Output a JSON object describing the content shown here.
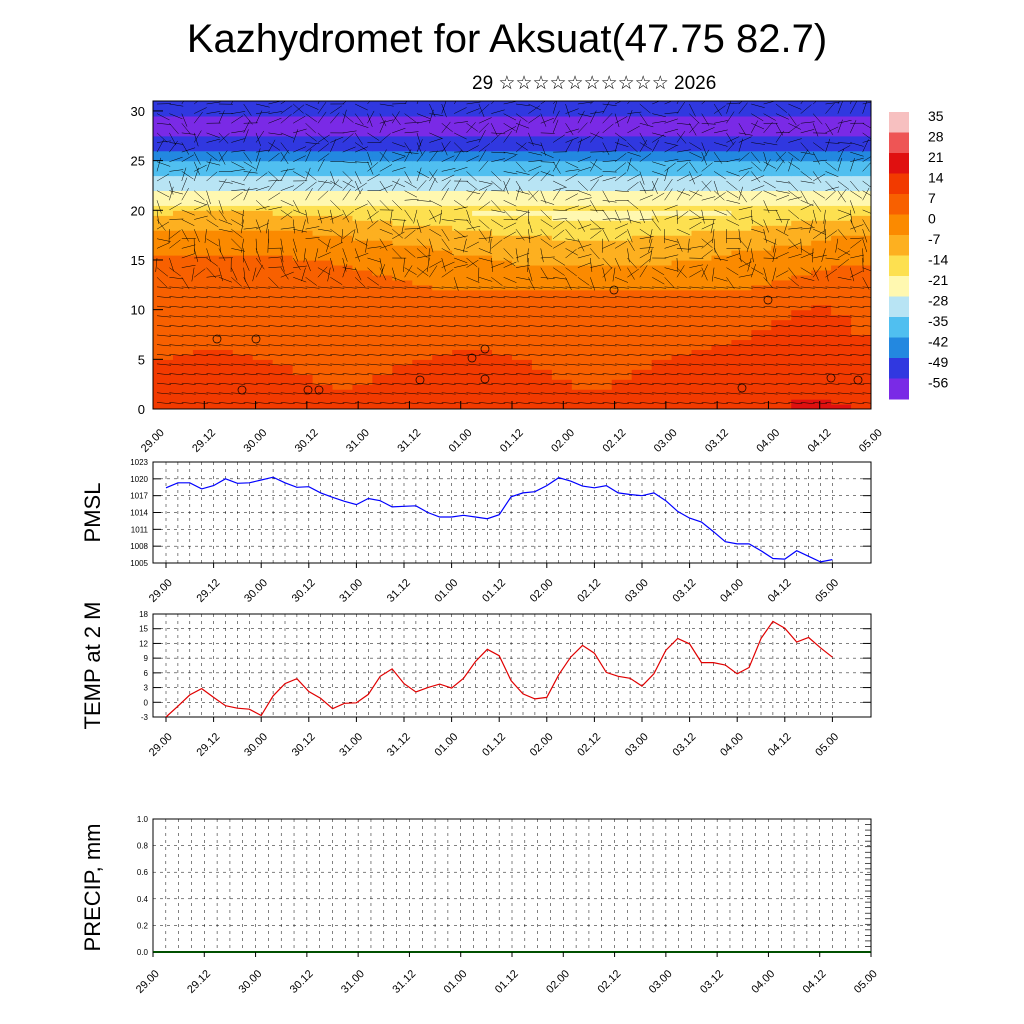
{
  "title": "Kazhydromet for Aksuat(47.75 82.7)",
  "subtitle": "29 ☆☆☆☆☆☆☆☆☆☆ 2026",
  "x_tick_labels": [
    "29.00",
    "29.12",
    "30.00",
    "30.12",
    "31.00",
    "31.12",
    "01.00",
    "01.12",
    "02.00",
    "02.12",
    "03.00",
    "03.12",
    "04.00",
    "04.12",
    "05.00"
  ],
  "chart_data": [
    {
      "type": "heatmap",
      "title": "",
      "ylabel": "",
      "y_ticks": [
        0,
        5,
        10,
        15,
        20,
        25,
        30
      ],
      "ylim": [
        0,
        31
      ],
      "colorbar_labels": [
        "35",
        "28",
        "21",
        "14",
        "7",
        "0",
        "-7",
        "-14",
        "-21",
        "-28",
        "-35",
        "-42",
        "-49",
        "-56"
      ],
      "colorbar_colors": [
        "#f7c0c0",
        "#ee5555",
        "#e01010",
        "#f23a00",
        "#f86000",
        "#fb8a00",
        "#fdb020",
        "#fde050",
        "#fff8b0",
        "#b8e4f4",
        "#50bff0",
        "#2388e0",
        "#3038e0",
        "#7a2ae6"
      ],
      "levels": [
        0,
        2,
        4,
        6,
        8,
        10,
        12,
        14,
        16,
        18,
        20,
        22,
        24,
        26,
        28,
        30
      ],
      "temperature_profile": [
        14,
        12,
        11,
        9,
        8,
        6,
        5,
        2,
        -2,
        -8,
        -16,
        -24,
        -33,
        -45,
        -54,
        -52,
        -48
      ]
    },
    {
      "type": "line",
      "ylabel": "PMSL",
      "ylim": [
        1005,
        1023
      ],
      "y_ticks": [
        "1005",
        "1008",
        "1011",
        "1014",
        "1017",
        "1020",
        "1023"
      ],
      "color": "#0000ff",
      "values": [
        1018.4,
        1019.3,
        1019.3,
        1018.2,
        1018.8,
        1020.0,
        1019.2,
        1019.3,
        1019.8,
        1020.3,
        1019.3,
        1018.5,
        1018.6,
        1017.5,
        1016.7,
        1016.0,
        1015.4,
        1016.5,
        1016.1,
        1015.0,
        1015.1,
        1015.2,
        1014.0,
        1013.2,
        1013.2,
        1013.5,
        1013.2,
        1012.9,
        1013.6,
        1016.8,
        1017.5,
        1017.7,
        1018.8,
        1020.2,
        1019.6,
        1018.7,
        1018.4,
        1018.8,
        1017.5,
        1017.2,
        1017.0,
        1017.5,
        1016.1,
        1014.2,
        1013.0,
        1012.3,
        1010.6,
        1008.8,
        1008.4,
        1008.4,
        1007.2,
        1005.8,
        1005.7,
        1007.2,
        1006.2,
        1005.2,
        1005.6
      ]
    },
    {
      "type": "line",
      "ylabel": "TEMP at 2 M",
      "ylim": [
        -3,
        18
      ],
      "y_ticks": [
        "-3",
        "0",
        "3",
        "6",
        "9",
        "12",
        "15",
        "18"
      ],
      "color": "#e00000",
      "values": [
        -3.0,
        -0.8,
        1.5,
        2.8,
        1.0,
        -0.7,
        -1.2,
        -1.4,
        -2.7,
        1.3,
        3.8,
        4.8,
        2.2,
        0.8,
        -1.3,
        -0.2,
        -0.1,
        1.6,
        5.3,
        6.8,
        3.8,
        2.1,
        3.0,
        3.7,
        2.9,
        4.9,
        8.3,
        10.8,
        9.5,
        4.4,
        1.7,
        0.7,
        1.0,
        5.6,
        9.2,
        11.6,
        10.0,
        6.1,
        5.3,
        4.9,
        3.3,
        5.8,
        10.6,
        13.0,
        11.9,
        8.1,
        8.1,
        7.6,
        5.8,
        7.1,
        13.0,
        16.5,
        15.1,
        12.3,
        13.2,
        11.1,
        9.2
      ]
    },
    {
      "type": "line",
      "ylabel": "PRECIP, mm",
      "ylim": [
        0,
        1
      ],
      "y_ticks": [
        "0.0",
        "0.2",
        "0.4",
        "0.6",
        "0.8",
        "1.0"
      ],
      "color": "#005000",
      "values": [
        0,
        0,
        0,
        0,
        0,
        0,
        0,
        0,
        0,
        0,
        0,
        0,
        0,
        0,
        0,
        0,
        0,
        0,
        0,
        0,
        0,
        0,
        0,
        0,
        0,
        0,
        0,
        0,
        0,
        0,
        0,
        0,
        0,
        0,
        0,
        0,
        0,
        0,
        0,
        0,
        0,
        0,
        0,
        0,
        0,
        0,
        0,
        0,
        0,
        0,
        0,
        0,
        0,
        0,
        0,
        0,
        0
      ]
    }
  ]
}
